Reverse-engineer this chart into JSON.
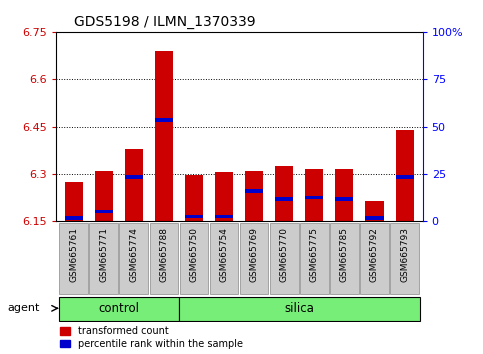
{
  "title": "GDS5198 / ILMN_1370339",
  "samples": [
    "GSM665761",
    "GSM665771",
    "GSM665774",
    "GSM665788",
    "GSM665750",
    "GSM665754",
    "GSM665769",
    "GSM665770",
    "GSM665775",
    "GSM665785",
    "GSM665792",
    "GSM665793"
  ],
  "groups": [
    "control",
    "control",
    "control",
    "control",
    "silica",
    "silica",
    "silica",
    "silica",
    "silica",
    "silica",
    "silica",
    "silica"
  ],
  "transformed_count": [
    6.275,
    6.31,
    6.38,
    6.69,
    6.295,
    6.305,
    6.31,
    6.325,
    6.315,
    6.315,
    6.215,
    6.44
  ],
  "percentile_rank": [
    6.155,
    6.175,
    6.285,
    6.465,
    6.16,
    6.16,
    6.24,
    6.215,
    6.22,
    6.215,
    6.155,
    6.285
  ],
  "y_min": 6.15,
  "y_max": 6.75,
  "y_ticks": [
    6.15,
    6.3,
    6.45,
    6.6,
    6.75
  ],
  "y_tick_labels": [
    "6.15",
    "6.3",
    "6.45",
    "6.6",
    "6.75"
  ],
  "right_y_ticks": [
    0,
    25,
    50,
    75,
    100
  ],
  "right_y_tick_labels": [
    "0",
    "25",
    "50",
    "75",
    "100%"
  ],
  "bar_color": "#cc0000",
  "percentile_color": "#0000cc",
  "group_color": "#77ee77",
  "bar_width": 0.6,
  "bg_color": "#ffffff",
  "tick_bg_color": "#cccccc",
  "percentile_thickness": 0.011
}
